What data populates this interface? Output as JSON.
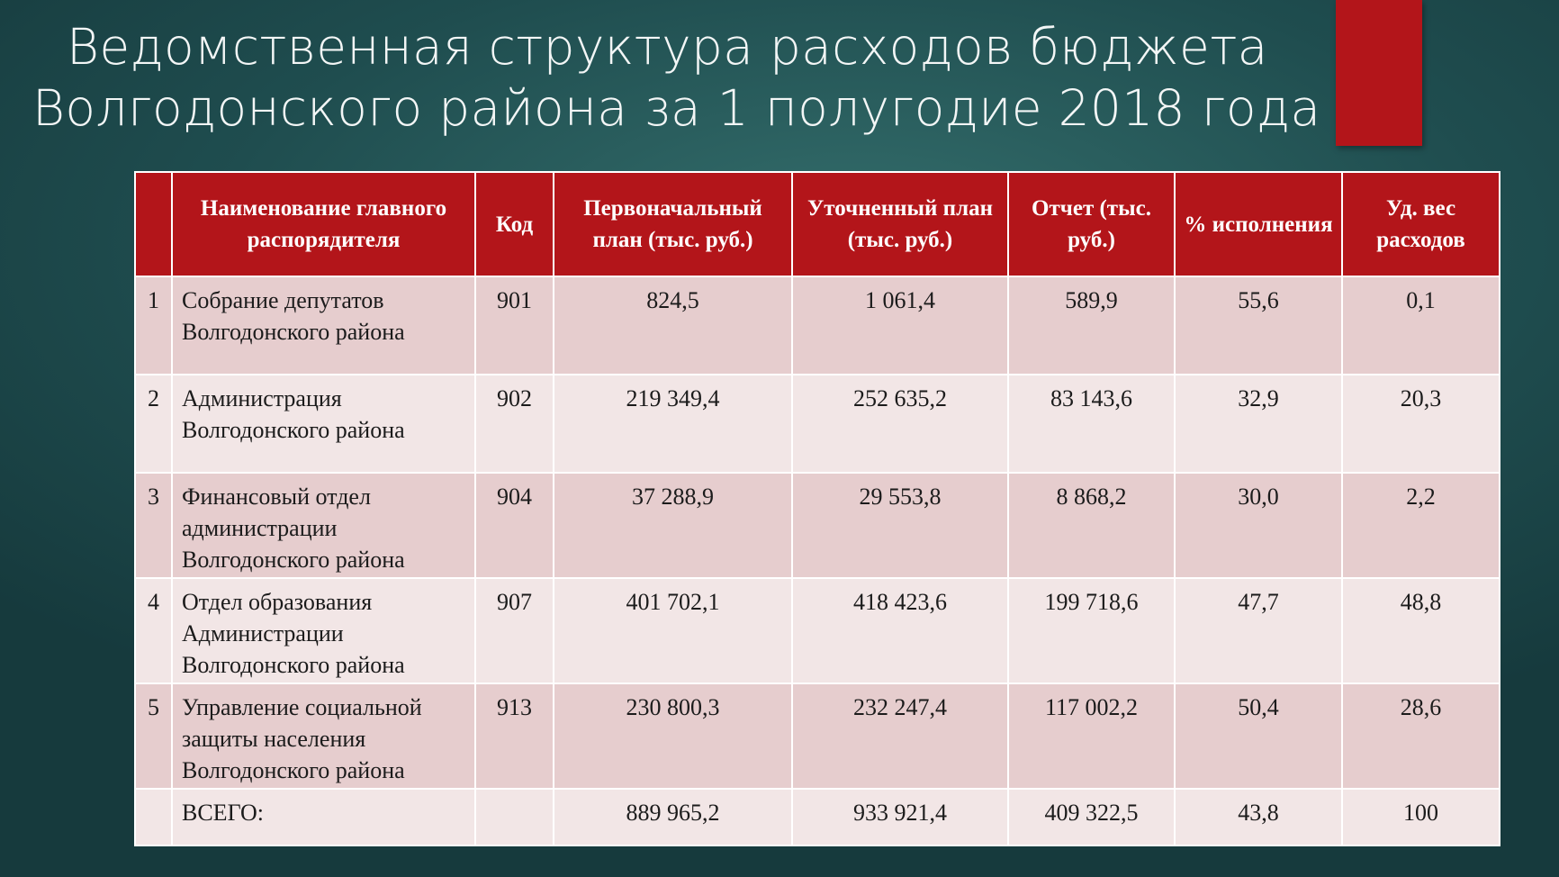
{
  "slide": {
    "title_line1": "Ведомственная структура расходов бюджета",
    "title_line2": "Волгодонского района за 1 полугодие 2018 года"
  },
  "table": {
    "headers": {
      "name": "Наименование главного распорядителя",
      "code": "Код",
      "initial_plan": "Первоначальный план (тыс. руб.)",
      "revised_plan": "Уточненный план (тыс. руб.)",
      "report": "Отчет (тыс. руб.)",
      "percent": "% исполнения",
      "share": "Уд. вес расходов"
    },
    "rows": [
      {
        "n": "1",
        "name": "Собрание депутатов Волгодонского района",
        "code": "901",
        "initial_plan": "824,5",
        "revised_plan": "1 061,4",
        "report": "589,9",
        "percent": "55,6",
        "share": "0,1"
      },
      {
        "n": "2",
        "name": "Администрация Волгодонского района",
        "code": "902",
        "initial_plan": "219 349,4",
        "revised_plan": "252 635,2",
        "report": "83 143,6",
        "percent": "32,9",
        "share": "20,3"
      },
      {
        "n": "3",
        "name": "Финансовый отдел администрации Волгодонского района",
        "code": "904",
        "initial_plan": "37 288,9",
        "revised_plan": "29 553,8",
        "report": "8 868,2",
        "percent": "30,0",
        "share": "2,2"
      },
      {
        "n": "4",
        "name": "Отдел образования Администрации Волгодонского района",
        "code": "907",
        "initial_plan": "401 702,1",
        "revised_plan": "418 423,6",
        "report": "199 718,6",
        "percent": "47,7",
        "share": "48,8"
      },
      {
        "n": "5",
        "name": "Управление социальной защиты населения Волгодонского района",
        "code": "913",
        "initial_plan": "230 800,3",
        "revised_plan": "232 247,4",
        "report": "117 002,2",
        "percent": "50,4",
        "share": "28,6"
      }
    ],
    "total": {
      "label": "ВСЕГО:",
      "initial_plan": "889 965,2",
      "revised_plan": "933 921,4",
      "report": "409 322,5",
      "percent": "43,8",
      "share": "100"
    }
  },
  "colors": {
    "accent": "#b3151a",
    "row_odd": "#e6cdce",
    "row_even": "#f2e6e6",
    "background": "#1f4d4f"
  }
}
